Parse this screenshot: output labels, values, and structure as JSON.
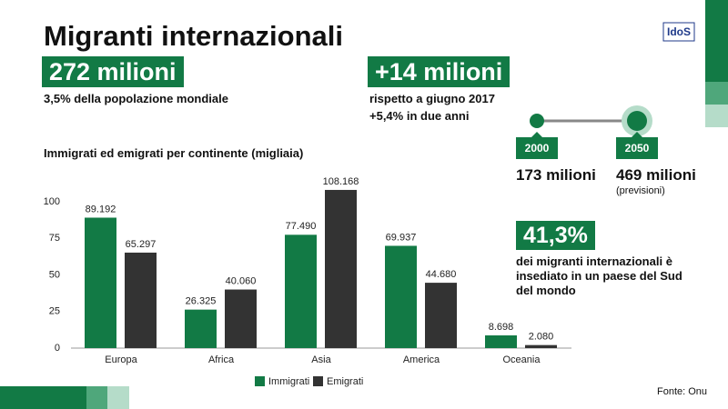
{
  "header": {
    "title": "Migranti internazionali",
    "total": "272 milioni",
    "total_note": "3,5% della popolazione mondiale",
    "increase": "+14 milioni",
    "increase_note_1": "rispetto a giugno 2017",
    "increase_note_2": "+5,4% in due anni",
    "logo": "IdoS"
  },
  "timeline": {
    "start_year": "2000",
    "end_year": "2050",
    "start_value": "173 milioni",
    "end_value": "469 milioni",
    "end_note": "(previsioni)"
  },
  "highlight": {
    "value": "41,3%",
    "text": "dei migranti internazionali è insediato in un paese del Sud del mondo"
  },
  "source": "Fonte: Onu",
  "chart_data": {
    "type": "bar",
    "title": "Immigrati ed emigrati per continente (migliaia)",
    "categories": [
      "Europa",
      "Africa",
      "Asia",
      "America",
      "Oceania"
    ],
    "series": [
      {
        "name": "Immigrati",
        "color": "#127a45",
        "values": [
          89.192,
          26.325,
          77.49,
          69.937,
          8.698
        ],
        "value_labels": [
          "89.192",
          "26.325",
          "77.490",
          "69.937",
          "8.698"
        ]
      },
      {
        "name": "Emigrati",
        "color": "#333333",
        "values": [
          65.297,
          40.06,
          108.168,
          44.68,
          2.08
        ],
        "value_labels": [
          "65.297",
          "40.060",
          "108.168",
          "44.680",
          "2.080"
        ]
      }
    ],
    "ylim": [
      0,
      110
    ],
    "yticks": [
      0,
      25,
      50,
      75,
      100
    ],
    "legend": "bottom"
  }
}
